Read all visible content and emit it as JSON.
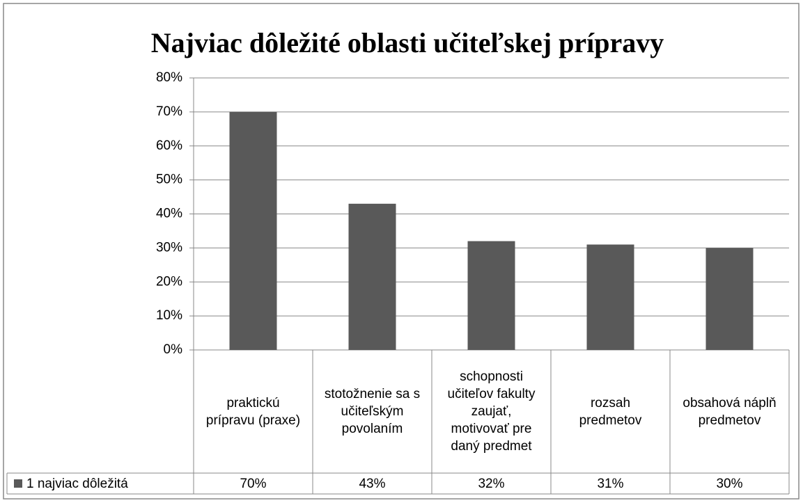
{
  "chart_data": {
    "type": "bar",
    "title": "Najviac dôležité oblasti učiteľskej prípravy",
    "categories": [
      "praktickú prípravu (praxe)",
      "stotožnenie sa s učiteľským povolaním",
      "schopnosti učiteľov fakulty zaujať, motivovať pre daný predmet",
      "rozsah predmetov",
      "obsahová náplň predmetov"
    ],
    "series": [
      {
        "name": "1 najviac dôležitá",
        "color": "#595959",
        "values": [
          70,
          43,
          32,
          31,
          30
        ],
        "value_labels": [
          "70%",
          "43%",
          "32%",
          "31%",
          "30%"
        ]
      }
    ],
    "ylim": [
      0,
      80
    ],
    "yticks": [
      {
        "value": 0,
        "label": "0%"
      },
      {
        "value": 10,
        "label": "10%"
      },
      {
        "value": 20,
        "label": "20%"
      },
      {
        "value": 30,
        "label": "30%"
      },
      {
        "value": 40,
        "label": "40%"
      },
      {
        "value": 50,
        "label": "50%"
      },
      {
        "value": 60,
        "label": "60%"
      },
      {
        "value": 70,
        "label": "70%"
      },
      {
        "value": 80,
        "label": "80%"
      }
    ],
    "grid": true
  }
}
